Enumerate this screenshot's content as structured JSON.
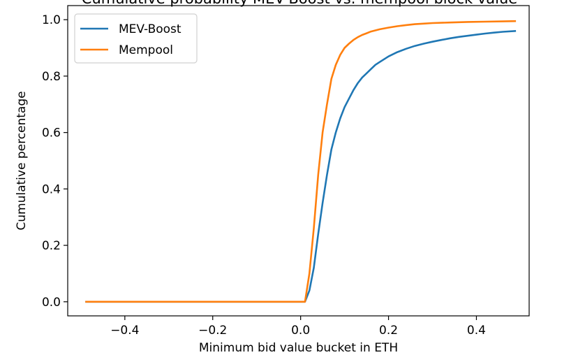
{
  "chart_data": {
    "type": "line",
    "title": "Cumulative probability MEV-Boost vs. mempool block value",
    "xlabel": "Minimum bid value bucket in ETH",
    "ylabel": "Cumulative percentage",
    "xlim": [
      -0.53,
      0.52
    ],
    "ylim": [
      -0.05,
      1.05
    ],
    "xticks": [
      -0.4,
      -0.2,
      0.0,
      0.2,
      0.4
    ],
    "xtick_labels": [
      "−0.4",
      "−0.2",
      "0.0",
      "0.2",
      "0.4"
    ],
    "yticks": [
      0.0,
      0.2,
      0.4,
      0.6,
      0.8,
      1.0
    ],
    "ytick_labels": [
      "0.0",
      "0.2",
      "0.4",
      "0.6",
      "0.8",
      "1.0"
    ],
    "grid": false,
    "legend": "upper left",
    "series": [
      {
        "name": "MEV-Boost",
        "color": "#1f77b4",
        "x": [
          -0.49,
          0.0,
          0.01,
          0.02,
          0.03,
          0.04,
          0.05,
          0.06,
          0.07,
          0.08,
          0.09,
          0.1,
          0.11,
          0.12,
          0.13,
          0.14,
          0.15,
          0.16,
          0.17,
          0.18,
          0.2,
          0.22,
          0.24,
          0.26,
          0.28,
          0.3,
          0.32,
          0.34,
          0.36,
          0.38,
          0.4,
          0.42,
          0.44,
          0.46,
          0.49
        ],
        "y": [
          0.0,
          0.0,
          0.0,
          0.04,
          0.12,
          0.24,
          0.35,
          0.45,
          0.54,
          0.6,
          0.65,
          0.69,
          0.72,
          0.75,
          0.775,
          0.795,
          0.81,
          0.825,
          0.84,
          0.85,
          0.87,
          0.885,
          0.897,
          0.907,
          0.915,
          0.922,
          0.928,
          0.934,
          0.939,
          0.943,
          0.947,
          0.951,
          0.954,
          0.957,
          0.96
        ]
      },
      {
        "name": "Mempool",
        "color": "#ff7f0e",
        "x": [
          -0.49,
          0.0,
          0.01,
          0.02,
          0.03,
          0.04,
          0.05,
          0.06,
          0.07,
          0.08,
          0.09,
          0.1,
          0.11,
          0.12,
          0.13,
          0.14,
          0.15,
          0.16,
          0.18,
          0.2,
          0.22,
          0.24,
          0.26,
          0.28,
          0.3,
          0.34,
          0.38,
          0.42,
          0.46,
          0.49
        ],
        "y": [
          0.0,
          0.0,
          0.0,
          0.1,
          0.26,
          0.45,
          0.6,
          0.7,
          0.79,
          0.84,
          0.875,
          0.9,
          0.915,
          0.928,
          0.938,
          0.946,
          0.952,
          0.958,
          0.966,
          0.972,
          0.977,
          0.981,
          0.984,
          0.986,
          0.988,
          0.99,
          0.992,
          0.993,
          0.994,
          0.995
        ]
      }
    ]
  }
}
